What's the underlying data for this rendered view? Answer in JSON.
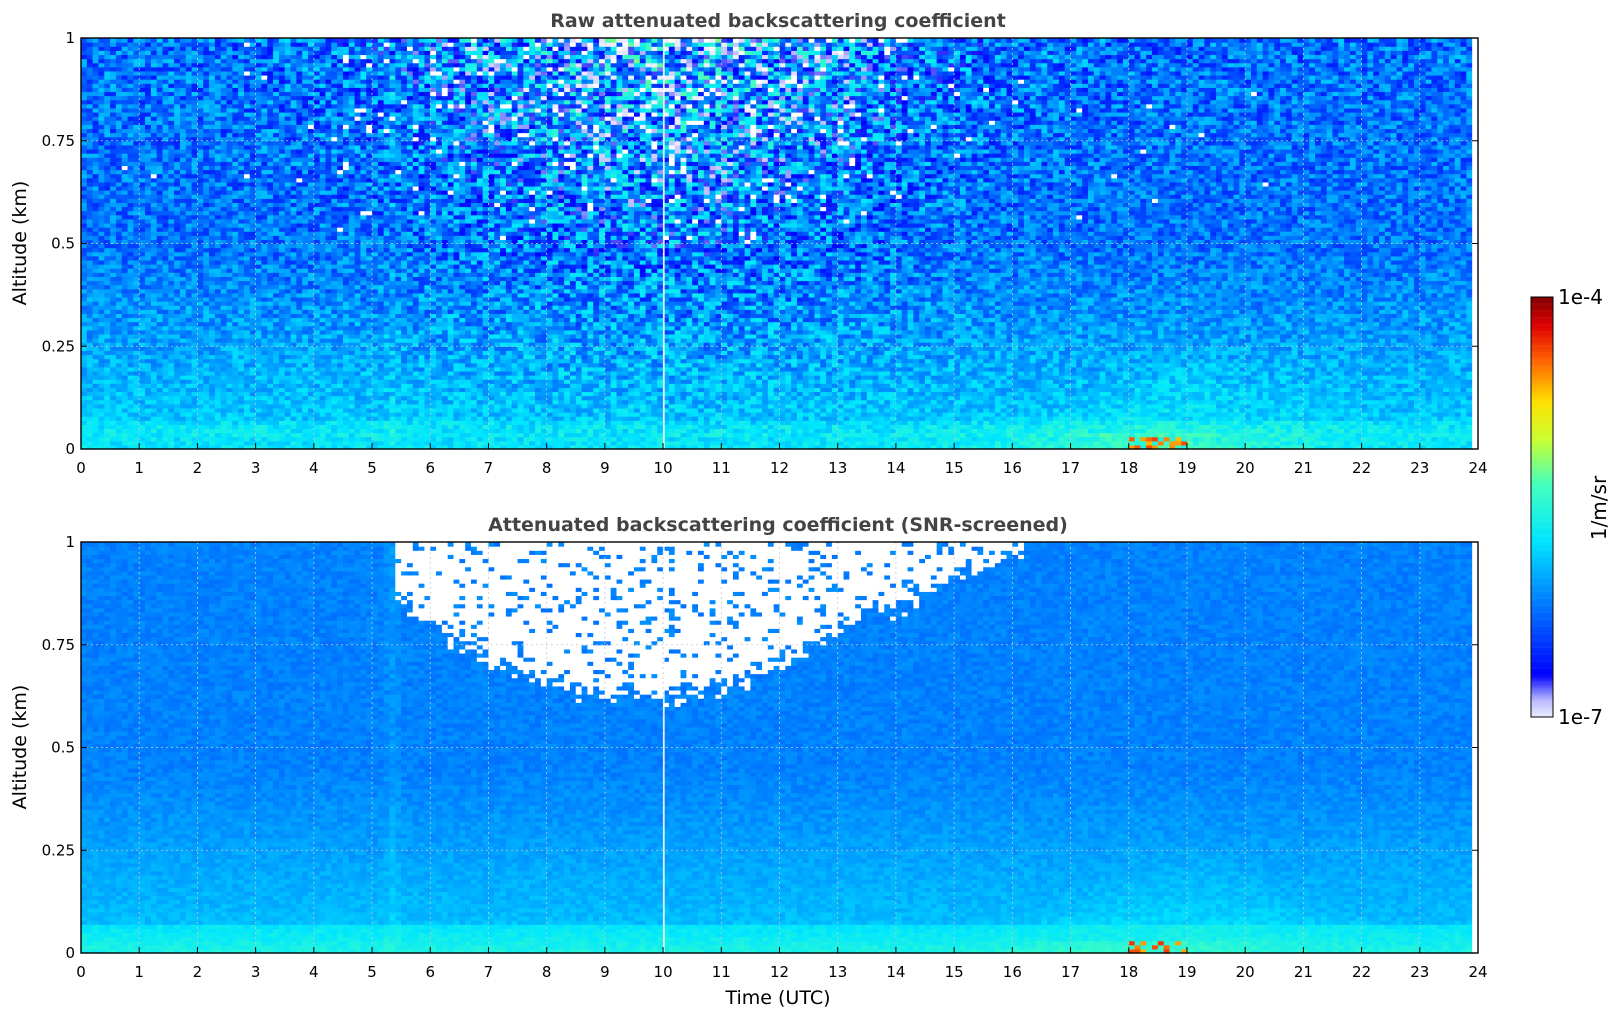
{
  "chart_data": [
    {
      "type": "heatmap",
      "title": "Raw attenuated backscattering coefficient",
      "xlabel": "",
      "ylabel": "Altitude (km)",
      "xlim": [
        0,
        24
      ],
      "ylim": [
        0,
        1
      ],
      "x_ticks": [
        "0",
        "1",
        "2",
        "3",
        "4",
        "5",
        "6",
        "7",
        "8",
        "9",
        "10",
        "11",
        "12",
        "13",
        "14",
        "15",
        "16",
        "17",
        "18",
        "19",
        "20",
        "21",
        "22",
        "23",
        "24"
      ],
      "y_ticks": [
        "0",
        "0.25",
        "0.5",
        "0.75",
        "1"
      ],
      "grid": true,
      "snr_screened": false
    },
    {
      "type": "heatmap",
      "title": "Attenuated backscattering coefficient (SNR-screened)",
      "xlabel": "Time (UTC)",
      "ylabel": "Altitude (km)",
      "xlim": [
        0,
        24
      ],
      "ylim": [
        0,
        1
      ],
      "x_ticks": [
        "0",
        "1",
        "2",
        "3",
        "4",
        "5",
        "6",
        "7",
        "8",
        "9",
        "10",
        "11",
        "12",
        "13",
        "14",
        "15",
        "16",
        "17",
        "18",
        "19",
        "20",
        "21",
        "22",
        "23",
        "24"
      ],
      "y_ticks": [
        "0",
        "0.25",
        "0.5",
        "0.75",
        "1"
      ],
      "grid": true,
      "snr_screened": true
    }
  ],
  "colorbar": {
    "label": "1/m/sr",
    "max_label": "1e-4",
    "min_label": "1e-7",
    "scale": "log",
    "colormap": "jet",
    "placement": "right"
  }
}
